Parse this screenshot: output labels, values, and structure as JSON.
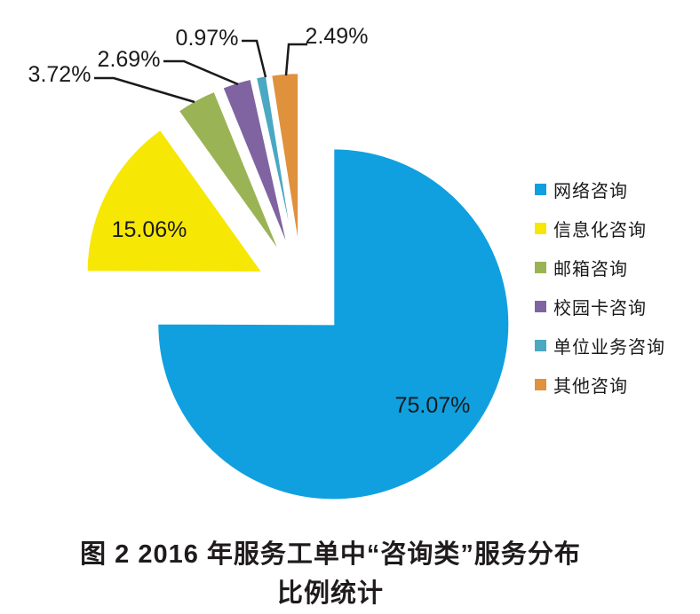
{
  "figure": {
    "caption_line1": "图 2  2016 年服务工单中“咨询类”服务分布",
    "caption_line2": "比例统计"
  },
  "chart_data": {
    "type": "pie",
    "title": "图 2 2016 年服务工单中“咨询类”服务分布比例统计",
    "legend_position": "right",
    "start_angle_deg": 0,
    "direction": "clockwise",
    "unit": "percent",
    "exploded": true,
    "slices": [
      {
        "name": "网络咨询",
        "value": 75.07,
        "label": "75.07%",
        "color": "#10A0DF",
        "label_placement": "inside"
      },
      {
        "name": "信息化咨询",
        "value": 15.06,
        "label": "15.06%",
        "color": "#F6E705",
        "label_placement": "inside"
      },
      {
        "name": "邮箱咨询",
        "value": 3.72,
        "label": "3.72%",
        "color": "#9AB455",
        "label_placement": "callout"
      },
      {
        "name": "校园卡咨询",
        "value": 2.69,
        "label": "2.69%",
        "color": "#8064A2",
        "label_placement": "callout"
      },
      {
        "name": "单位业务咨询",
        "value": 0.97,
        "label": "0.97%",
        "color": "#4AA8C3",
        "label_placement": "callout"
      },
      {
        "name": "其他咨询",
        "value": 2.49,
        "label": "2.49%",
        "color": "#E0913C",
        "label_placement": "callout"
      }
    ]
  }
}
